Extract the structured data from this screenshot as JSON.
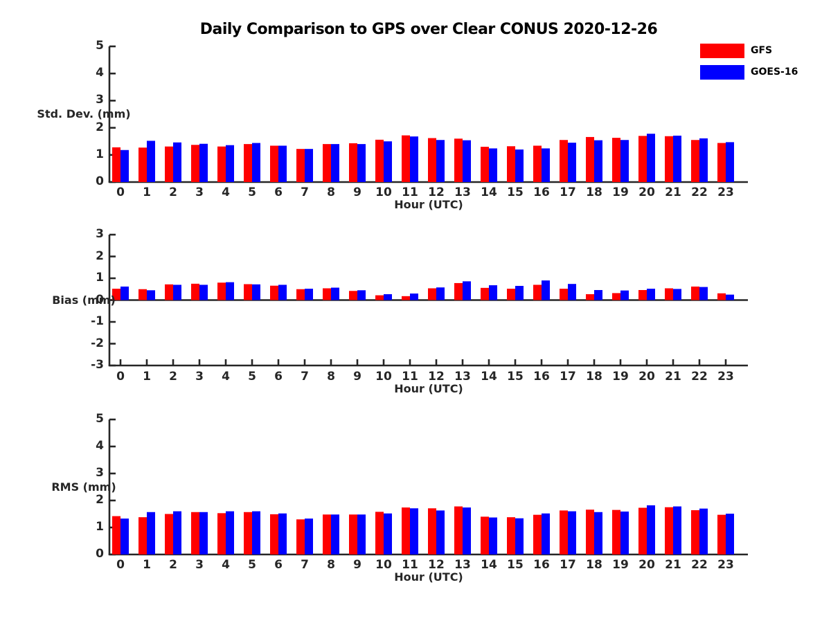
{
  "title": "Daily Comparison to GPS over Clear CONUS 2020-12-26",
  "legend": {
    "items": [
      {
        "label": "GFS",
        "color": "#ff0000"
      },
      {
        "label": "GOES-16",
        "color": "#0000ff"
      }
    ]
  },
  "colors": {
    "gfs": "#ff0000",
    "goes16": "#0000ff",
    "axis": "#262626",
    "background": "#ffffff"
  },
  "chart_data": [
    {
      "type": "bar",
      "title": "",
      "ylabel": "Std. Dev. (mm)",
      "xlabel": "Hour (UTC)",
      "categories": [
        "0",
        "1",
        "2",
        "3",
        "4",
        "5",
        "6",
        "7",
        "8",
        "9",
        "10",
        "11",
        "12",
        "13",
        "14",
        "15",
        "16",
        "17",
        "18",
        "19",
        "20",
        "21",
        "22",
        "23"
      ],
      "ylim": [
        0,
        5
      ],
      "yticks": [
        0,
        1,
        2,
        3,
        4,
        5
      ],
      "grid": false,
      "legend_position": "top-right",
      "series": [
        {
          "name": "GFS",
          "color": "#ff0000",
          "values": [
            1.28,
            1.27,
            1.31,
            1.37,
            1.31,
            1.4,
            1.34,
            1.22,
            1.4,
            1.43,
            1.56,
            1.72,
            1.62,
            1.6,
            1.3,
            1.32,
            1.34,
            1.55,
            1.66,
            1.63,
            1.7,
            1.69,
            1.55,
            1.44
          ]
        },
        {
          "name": "GOES-16",
          "color": "#0000ff",
          "values": [
            1.18,
            1.52,
            1.46,
            1.41,
            1.36,
            1.44,
            1.34,
            1.22,
            1.4,
            1.4,
            1.5,
            1.68,
            1.55,
            1.54,
            1.24,
            1.2,
            1.24,
            1.45,
            1.54,
            1.55,
            1.78,
            1.71,
            1.61,
            1.47
          ]
        }
      ]
    },
    {
      "type": "bar",
      "title": "",
      "ylabel": "Bias (mm)",
      "xlabel": "Hour (UTC)",
      "categories": [
        "0",
        "1",
        "2",
        "3",
        "4",
        "5",
        "6",
        "7",
        "8",
        "9",
        "10",
        "11",
        "12",
        "13",
        "14",
        "15",
        "16",
        "17",
        "18",
        "19",
        "20",
        "21",
        "22",
        "23"
      ],
      "ylim": [
        -3,
        3
      ],
      "yticks": [
        -3,
        -2,
        -1,
        0,
        1,
        2,
        3
      ],
      "grid": false,
      "zero_line": true,
      "series": [
        {
          "name": "GFS",
          "color": "#ff0000",
          "values": [
            0.52,
            0.5,
            0.72,
            0.75,
            0.8,
            0.73,
            0.66,
            0.5,
            0.54,
            0.42,
            0.22,
            0.18,
            0.54,
            0.78,
            0.56,
            0.52,
            0.7,
            0.52,
            0.27,
            0.32,
            0.46,
            0.54,
            0.62,
            0.31
          ]
        },
        {
          "name": "GOES-16",
          "color": "#0000ff",
          "values": [
            0.62,
            0.45,
            0.7,
            0.7,
            0.82,
            0.72,
            0.7,
            0.52,
            0.57,
            0.45,
            0.27,
            0.3,
            0.58,
            0.86,
            0.68,
            0.65,
            0.9,
            0.74,
            0.46,
            0.44,
            0.52,
            0.51,
            0.6,
            0.25
          ]
        }
      ]
    },
    {
      "type": "bar",
      "title": "",
      "ylabel": "RMS (mm)",
      "xlabel": "Hour (UTC)",
      "categories": [
        "0",
        "1",
        "2",
        "3",
        "4",
        "5",
        "6",
        "7",
        "8",
        "9",
        "10",
        "11",
        "12",
        "13",
        "14",
        "15",
        "16",
        "17",
        "18",
        "19",
        "20",
        "21",
        "22",
        "23"
      ],
      "ylim": [
        0,
        5
      ],
      "yticks": [
        0,
        1,
        2,
        3,
        4,
        5
      ],
      "grid": false,
      "series": [
        {
          "name": "GFS",
          "color": "#ff0000",
          "values": [
            1.42,
            1.38,
            1.5,
            1.57,
            1.53,
            1.57,
            1.49,
            1.3,
            1.48,
            1.48,
            1.58,
            1.74,
            1.71,
            1.78,
            1.4,
            1.38,
            1.47,
            1.63,
            1.66,
            1.65,
            1.73,
            1.75,
            1.64,
            1.47
          ]
        },
        {
          "name": "GOES-16",
          "color": "#0000ff",
          "values": [
            1.33,
            1.57,
            1.6,
            1.57,
            1.6,
            1.6,
            1.52,
            1.33,
            1.48,
            1.48,
            1.52,
            1.71,
            1.63,
            1.74,
            1.37,
            1.34,
            1.52,
            1.6,
            1.57,
            1.59,
            1.82,
            1.78,
            1.7,
            1.51
          ]
        }
      ]
    }
  ]
}
